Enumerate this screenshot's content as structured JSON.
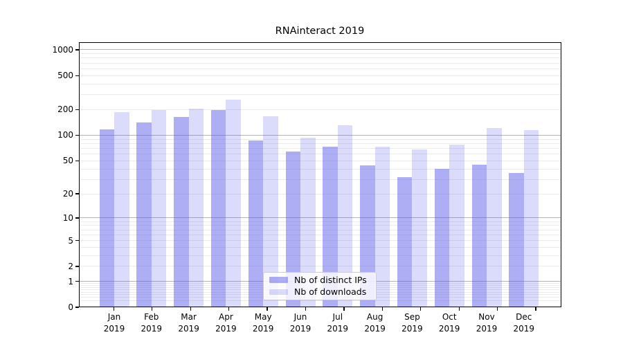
{
  "chart_data": {
    "type": "bar",
    "title": "RNAinteract 2019",
    "categories": [
      "Jan 2019",
      "Feb 2019",
      "Mar 2019",
      "Apr 2019",
      "May 2019",
      "Jun 2019",
      "Jul 2019",
      "Aug 2019",
      "Sep 2019",
      "Oct 2019",
      "Nov 2019",
      "Dec 2019"
    ],
    "series": [
      {
        "name": "Nb of distinct IPs",
        "color": "rgba(85,85,235,0.48)",
        "values": [
          118,
          142,
          165,
          198,
          87,
          64,
          73,
          44,
          32,
          40,
          45,
          36
        ]
      },
      {
        "name": "Nb of downloads",
        "color": "rgba(85,85,235,0.21)",
        "values": [
          186,
          199,
          207,
          260,
          166,
          94,
          131,
          73,
          68,
          78,
          122,
          114
        ]
      }
    ],
    "yscale": "log1p",
    "ylim": [
      0,
      1237
    ],
    "yticks": [
      0,
      1,
      2,
      5,
      10,
      20,
      50,
      100,
      200,
      500,
      1000
    ],
    "xlabel": "",
    "ylabel": "",
    "grid": {
      "orientation": "horizontal",
      "major_lines": [
        1,
        10,
        100,
        1000
      ],
      "major_color": "#b3b3b3",
      "minor_color": "#ebebeb"
    },
    "legend_position": "lower center",
    "frame_color": "#000000"
  }
}
